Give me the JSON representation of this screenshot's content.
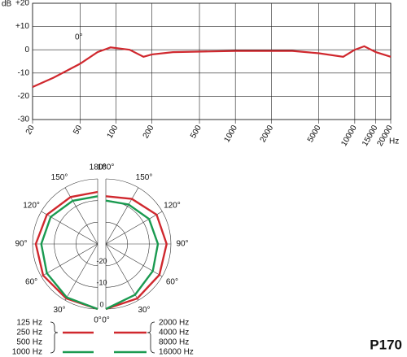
{
  "chart_data": [
    {
      "type": "line",
      "y_label": "dB",
      "x_unit": "Hz",
      "annotation": "0°",
      "log_x": true,
      "grid": true,
      "x": [
        20,
        30,
        50,
        70,
        90,
        130,
        170,
        200,
        300,
        1000,
        3000,
        5000,
        8000,
        10000,
        12000,
        15000,
        20000
      ],
      "series": [
        {
          "color": "#d0282e",
          "values": [
            -16,
            -12,
            -6,
            -1,
            1,
            0,
            -3,
            -2,
            -1,
            -0.5,
            -0.5,
            -1.5,
            -3,
            0,
            1.5,
            -1,
            -3
          ]
        }
      ],
      "xlim": [
        20,
        20000
      ],
      "xticks": [
        20,
        50,
        100,
        200,
        500,
        1000,
        2000,
        5000,
        10000,
        15000,
        20000
      ],
      "ylim": [
        -30,
        20
      ],
      "yticks": [
        {
          "value": 20,
          "label": "+20"
        },
        {
          "value": 10,
          "label": "+10"
        },
        0,
        -10,
        -20,
        -30
      ]
    },
    {
      "type": "polar",
      "angles": [
        0,
        30,
        60,
        90,
        120,
        150,
        180
      ],
      "angle_ticks": [
        {
          "value": 0,
          "label": "0°"
        },
        {
          "value": 30,
          "label": "30°"
        },
        {
          "value": 60,
          "label": "60°"
        },
        {
          "value": 90,
          "label": "90°"
        },
        {
          "value": 120,
          "label": "120°"
        },
        {
          "value": 150,
          "label": "150°"
        },
        {
          "value": 180,
          "label": "180°"
        }
      ],
      "rlim": [
        -30,
        0
      ],
      "rticks": [
        -20,
        -10,
        0
      ],
      "series": [
        {
          "names": [
            "125 Hz",
            "250 Hz"
          ],
          "side": "left",
          "color": "#d0282e",
          "values": [
            0,
            -1,
            -1,
            -1.5,
            -3,
            -5,
            -6
          ]
        },
        {
          "names": [
            "500 Hz",
            "1000 Hz"
          ],
          "side": "left",
          "color": "#1a9a50",
          "values": [
            0,
            -1.5,
            -3,
            -4,
            -5,
            -7,
            -8
          ]
        },
        {
          "names": [
            "2000 Hz",
            "4000 Hz"
          ],
          "side": "right",
          "color": "#d0282e",
          "values": [
            0,
            -1,
            -1.5,
            -2,
            -3,
            -6,
            -8
          ]
        },
        {
          "names": [
            "8000 Hz",
            "16000 Hz"
          ],
          "side": "right",
          "color": "#1a9a50",
          "values": [
            0,
            -3,
            -5,
            -6,
            -7,
            -9,
            -10
          ]
        }
      ]
    }
  ],
  "model": "P170"
}
